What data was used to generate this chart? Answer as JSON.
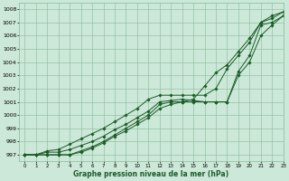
{
  "title": "Graphe pression niveau de la mer (hPa)",
  "bg_color": "#cce8d8",
  "grid_color": "#88bb99",
  "line_color": "#1a5c28",
  "xlim": [
    -0.5,
    23
  ],
  "ylim": [
    996.5,
    1008.5
  ],
  "yticks": [
    997,
    998,
    999,
    1000,
    1001,
    1002,
    1003,
    1004,
    1005,
    1006,
    1007,
    1008
  ],
  "xticks": [
    0,
    1,
    2,
    3,
    4,
    5,
    6,
    7,
    8,
    9,
    10,
    11,
    12,
    13,
    14,
    15,
    16,
    17,
    18,
    19,
    20,
    21,
    22,
    23
  ],
  "series": [
    [
      997.0,
      997.0,
      997.2,
      997.2,
      997.4,
      997.7,
      998.0,
      998.4,
      998.9,
      999.3,
      999.8,
      1000.3,
      1001.0,
      1001.1,
      1001.2,
      1001.1,
      1001.0,
      1001.0,
      1001.0,
      1003.3,
      1004.5,
      1006.8,
      1007.0,
      1007.5
    ],
    [
      997.0,
      997.0,
      997.0,
      997.0,
      997.0,
      997.3,
      997.6,
      998.0,
      998.5,
      999.0,
      999.5,
      1000.0,
      1000.8,
      1001.0,
      1001.0,
      1001.0,
      1001.0,
      1001.0,
      1001.0,
      1003.0,
      1004.0,
      1006.0,
      1006.8,
      1007.5
    ],
    [
      997.0,
      997.0,
      997.3,
      997.4,
      997.8,
      998.2,
      998.6,
      999.0,
      999.5,
      1000.0,
      1000.5,
      1001.2,
      1001.5,
      1001.5,
      1001.5,
      1001.5,
      1001.5,
      1002.0,
      1003.5,
      1004.5,
      1005.5,
      1007.0,
      1007.5,
      1007.8
    ],
    [
      997.0,
      997.0,
      997.0,
      997.0,
      997.0,
      997.2,
      997.5,
      997.9,
      998.4,
      998.8,
      999.3,
      999.8,
      1000.5,
      1000.8,
      1001.0,
      1001.2,
      1002.2,
      1003.2,
      1003.8,
      1004.8,
      1005.8,
      1007.0,
      1007.3,
      1007.8
    ]
  ],
  "figsize": [
    3.2,
    2.0
  ],
  "dpi": 100
}
